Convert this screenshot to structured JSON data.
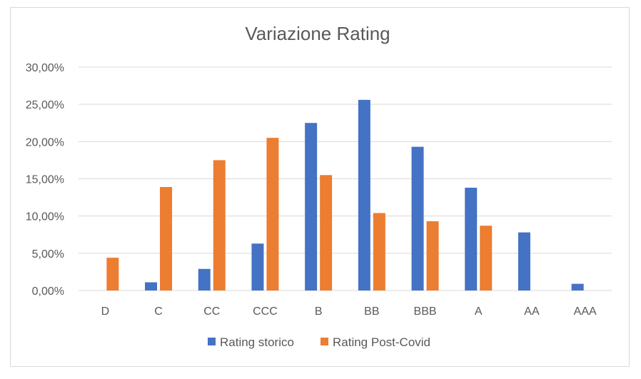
{
  "chart_data": {
    "type": "bar",
    "title": "Variazione Rating",
    "xlabel": "",
    "ylabel": "",
    "categories": [
      "D",
      "C",
      "CC",
      "CCC",
      "B",
      "BB",
      "BBB",
      "A",
      "AA",
      "AAA"
    ],
    "series": [
      {
        "name": "Rating storico",
        "color": "#4472C4",
        "values": [
          0.0,
          1.1,
          2.9,
          6.3,
          22.5,
          25.6,
          19.3,
          13.8,
          7.8,
          0.9
        ]
      },
      {
        "name": "Rating Post-Covid",
        "color": "#ED7D31",
        "values": [
          4.4,
          13.9,
          17.5,
          20.5,
          15.5,
          10.4,
          9.3,
          8.7,
          0.0,
          0.0
        ]
      }
    ],
    "ylim": [
      0,
      30
    ],
    "yticks": [
      "0,00%",
      "5,00%",
      "10,00%",
      "15,00%",
      "20,00%",
      "25,00%",
      "30,00%"
    ],
    "grid": true,
    "legend_position": "bottom"
  }
}
